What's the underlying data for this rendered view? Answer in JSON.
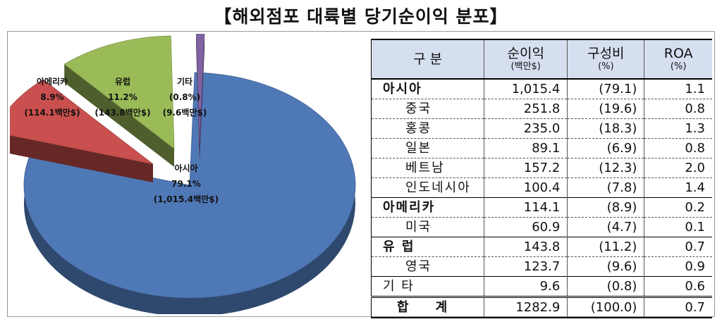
{
  "title": "【해외점포 대륙별 당기순이익 분포】",
  "chart_data": {
    "type": "pie",
    "slices": [
      {
        "name": "아시아",
        "percent_label": "79.1%",
        "value_label": "(1,015.4백만$)",
        "value": 79.1,
        "color": "#4f78b6"
      },
      {
        "name": "아메리카",
        "percent_label": "8.9%",
        "value_label": "(114.1백만$)",
        "value": 8.9,
        "color": "#c9504e"
      },
      {
        "name": "유럽",
        "percent_label": "11.2%",
        "value_label": "(143.8백만$)",
        "value": 11.2,
        "color": "#9bbb59"
      },
      {
        "name": "기타",
        "percent_label": "(0.8%)",
        "value_label": "(9.6백만$)",
        "value": 0.8,
        "color": "#8064a2"
      }
    ]
  },
  "table": {
    "headers": [
      {
        "main": "구 분",
        "sub": ""
      },
      {
        "main": "순이익",
        "sub": "(백만$)"
      },
      {
        "main": "구성비",
        "sub": "(%)"
      },
      {
        "main": "ROA",
        "sub": "(%)"
      }
    ],
    "rows": [
      {
        "label": "아시아",
        "profit": "1,015.4",
        "share": "(79.1)",
        "roa": "1.1"
      },
      {
        "label": "중국",
        "profit": "251.8",
        "share": "(19.6)",
        "roa": "0.8"
      },
      {
        "label": "홍콩",
        "profit": "235.0",
        "share": "(18.3)",
        "roa": "1.3"
      },
      {
        "label": "일본",
        "profit": "89.1",
        "share": "(6.9)",
        "roa": "0.8"
      },
      {
        "label": "베트남",
        "profit": "157.2",
        "share": "(12.3)",
        "roa": "2.0"
      },
      {
        "label": "인도네시아",
        "profit": "100.4",
        "share": "(7.8)",
        "roa": "1.4"
      },
      {
        "label": "아메리카",
        "profit": "114.1",
        "share": "(8.9)",
        "roa": "0.2"
      },
      {
        "label": "미국",
        "profit": "60.9",
        "share": "(4.7)",
        "roa": "0.1"
      },
      {
        "label": "유 럽",
        "profit": "143.8",
        "share": "(11.2)",
        "roa": "0.7"
      },
      {
        "label": "영국",
        "profit": "123.7",
        "share": "(9.6)",
        "roa": "0.9"
      },
      {
        "label": "기 타",
        "profit": "9.6",
        "share": "(0.8)",
        "roa": "0.6"
      },
      {
        "label": "합 계",
        "profit": "1282.9",
        "share": "(100.0)",
        "roa": "0.7"
      }
    ]
  }
}
